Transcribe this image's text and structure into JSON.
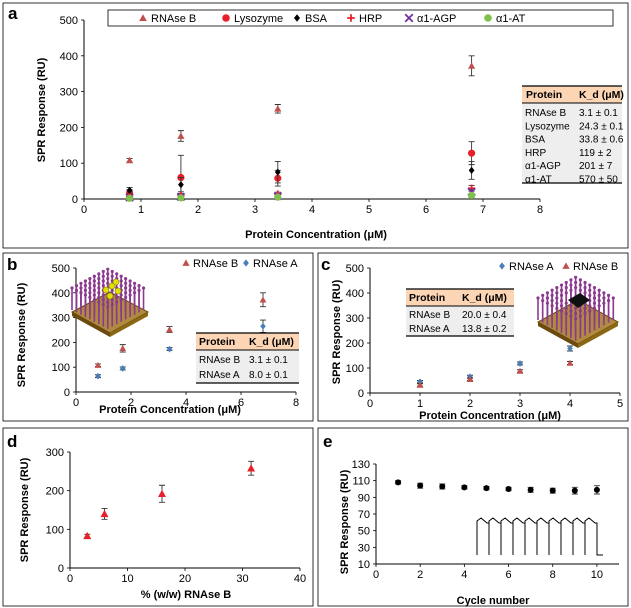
{
  "colors": {
    "rnase_b": "#c0504d",
    "lysozyme": "#e8202a",
    "bsa": "#000000",
    "hrp": "#e8202a",
    "a1agp": "#7030a0",
    "a1at": "#7fc04a",
    "rnase_a": "#4a7ebb",
    "table_header": "#fcd5b4",
    "table_body": "#eeeeee",
    "purple": "#8b3a8f",
    "gold": "#8b6914"
  },
  "chart_data": [
    {
      "panel": "a",
      "type": "scatter",
      "xlabel": "Protein Concentration (μM)",
      "ylabel": "SPR Response (RU)",
      "xlim": [
        0,
        8
      ],
      "ylim": [
        0,
        500
      ],
      "xticks": [
        "0",
        "1",
        "2",
        "3",
        "4",
        "5",
        "6",
        "7",
        "8"
      ],
      "yticks": [
        "0",
        "100",
        "200",
        "300",
        "400",
        "500"
      ],
      "legend": [
        "RNAse B",
        "Lysozyme",
        "BSA",
        "HRP",
        "α1-AGP",
        "α1-AT"
      ],
      "series": [
        {
          "name": "RNAse B",
          "marker": "triangle",
          "color": "rnase_b",
          "x": [
            0.8,
            1.7,
            3.4,
            6.8
          ],
          "y": [
            108,
            176,
            252,
            372
          ],
          "err": [
            5,
            15,
            12,
            28
          ]
        },
        {
          "name": "Lysozyme",
          "marker": "circle",
          "color": "lysozyme",
          "x": [
            0.8,
            1.7,
            3.4,
            6.8
          ],
          "y": [
            18,
            60,
            58,
            128
          ],
          "err": [
            8,
            62,
            22,
            32
          ]
        },
        {
          "name": "BSA",
          "marker": "diamond",
          "color": "bsa",
          "x": [
            0.8,
            1.7,
            3.4,
            6.8
          ],
          "y": [
            24,
            40,
            75,
            80
          ],
          "err": [
            8,
            20,
            30,
            25
          ]
        },
        {
          "name": "HRP",
          "marker": "plus",
          "color": "hrp",
          "x": [
            0.8,
            1.7,
            3.4,
            6.8
          ],
          "y": [
            6,
            10,
            14,
            30
          ],
          "err": [
            3,
            5,
            5,
            8
          ]
        },
        {
          "name": "α1-AGP",
          "marker": "x",
          "color": "a1agp",
          "x": [
            0.8,
            1.7,
            3.4,
            6.8
          ],
          "y": [
            4,
            6,
            8,
            20
          ],
          "err": [
            3,
            4,
            4,
            6
          ]
        },
        {
          "name": "α1-AT",
          "marker": "circle",
          "color": "a1at",
          "x": [
            0.8,
            1.7,
            3.4,
            6.8
          ],
          "y": [
            2,
            3,
            5,
            10
          ],
          "err": [
            2,
            3,
            3,
            5
          ]
        }
      ],
      "table": {
        "headers": [
          "Protein",
          "K_d (μM)"
        ],
        "rows": [
          [
            "RNAse B",
            "3.1 ± 0.1"
          ],
          [
            "Lysozyme",
            "24.3 ± 0.1"
          ],
          [
            "BSA",
            "33.8 ± 0.6"
          ],
          [
            "HRP",
            "119 ± 2"
          ],
          [
            "α1-AGP",
            "201 ± 7"
          ],
          [
            "α1-AT",
            "570 ± 50"
          ]
        ]
      }
    },
    {
      "panel": "b",
      "type": "scatter",
      "xlabel": "Protein Concentration (μM)",
      "ylabel": "SPR Response (RU)",
      "xlim": [
        0,
        8
      ],
      "ylim": [
        0,
        500
      ],
      "xticks": [
        "0",
        "2",
        "4",
        "6",
        "8"
      ],
      "yticks": [
        "0",
        "100",
        "200",
        "300",
        "400",
        "500"
      ],
      "legend": [
        "RNAse B",
        "RNAse A"
      ],
      "series": [
        {
          "name": "RNAse B",
          "marker": "triangle",
          "color": "rnase_b",
          "x": [
            0.8,
            1.7,
            3.4,
            6.8
          ],
          "y": [
            108,
            176,
            252,
            372
          ],
          "err": [
            5,
            15,
            12,
            28
          ]
        },
        {
          "name": "RNAse A",
          "marker": "diamond",
          "color": "rnase_a",
          "x": [
            0.8,
            1.7,
            3.4,
            6.8
          ],
          "y": [
            64,
            95,
            173,
            265
          ],
          "err": [
            6,
            6,
            6,
            25
          ]
        }
      ],
      "table": {
        "headers": [
          "Protein",
          "K_d (μM)"
        ],
        "rows": [
          [
            "RNAse B",
            "3.1 ± 0.1"
          ],
          [
            "RNAse A",
            "8.0 ± 0.1"
          ]
        ]
      }
    },
    {
      "panel": "c",
      "type": "scatter",
      "xlabel": "Protein Concentration (μM)",
      "ylabel": "SPR Response (RU)",
      "xlim": [
        0,
        5
      ],
      "ylim": [
        0,
        500
      ],
      "xticks": [
        "0",
        "1",
        "2",
        "3",
        "4",
        "5"
      ],
      "yticks": [
        "0",
        "100",
        "200",
        "300",
        "400",
        "500"
      ],
      "legend": [
        "RNAse A",
        "RNAse B"
      ],
      "series": [
        {
          "name": "RNAse A",
          "marker": "diamond",
          "color": "rnase_a",
          "x": [
            1,
            2,
            3,
            4
          ],
          "y": [
            45,
            65,
            118,
            178
          ],
          "err": [
            5,
            6,
            6,
            10
          ]
        },
        {
          "name": "RNAse B",
          "marker": "triangle",
          "color": "rnase_b",
          "x": [
            1,
            2,
            3,
            4
          ],
          "y": [
            32,
            55,
            88,
            120
          ],
          "err": [
            5,
            5,
            5,
            6
          ]
        }
      ],
      "table": {
        "headers": [
          "Protein",
          "K_d (μM)"
        ],
        "rows": [
          [
            "RNAse B",
            "20.0 ± 0.4"
          ],
          [
            "RNAse A",
            "13.8 ± 0.2"
          ]
        ]
      }
    },
    {
      "panel": "d",
      "type": "scatter",
      "xlabel": "% (w/w) RNAse B",
      "ylabel": "SPR Response (RU)",
      "xlim": [
        0,
        40
      ],
      "ylim": [
        0,
        300
      ],
      "xticks": [
        "0",
        "10",
        "20",
        "30",
        "40"
      ],
      "yticks": [
        "0",
        "100",
        "200",
        "300"
      ],
      "series": [
        {
          "name": "",
          "marker": "triangle",
          "color": "lysozyme",
          "x": [
            3,
            6,
            16,
            31.5
          ],
          "y": [
            83,
            140,
            192,
            258
          ],
          "err": [
            4,
            14,
            22,
            18
          ]
        }
      ]
    },
    {
      "panel": "e",
      "type": "scatter",
      "xlabel": "Cycle number",
      "ylabel": "SPR Response (RU)",
      "xlim": [
        0,
        11
      ],
      "ylim": [
        10,
        130
      ],
      "xticks": [
        "0",
        "2",
        "4",
        "6",
        "8",
        "10"
      ],
      "yticks": [
        "10",
        "30",
        "50",
        "70",
        "90",
        "110",
        "130"
      ],
      "series": [
        {
          "name": "",
          "marker": "circle",
          "color": "bsa",
          "x": [
            1,
            2,
            3,
            4,
            5,
            6,
            7,
            8,
            9,
            10
          ],
          "y": [
            108,
            104,
            103,
            102,
            101,
            100,
            99,
            98,
            98,
            99
          ],
          "err": [
            2,
            3,
            3,
            2,
            2,
            2,
            3,
            3,
            4,
            5
          ]
        }
      ]
    }
  ]
}
